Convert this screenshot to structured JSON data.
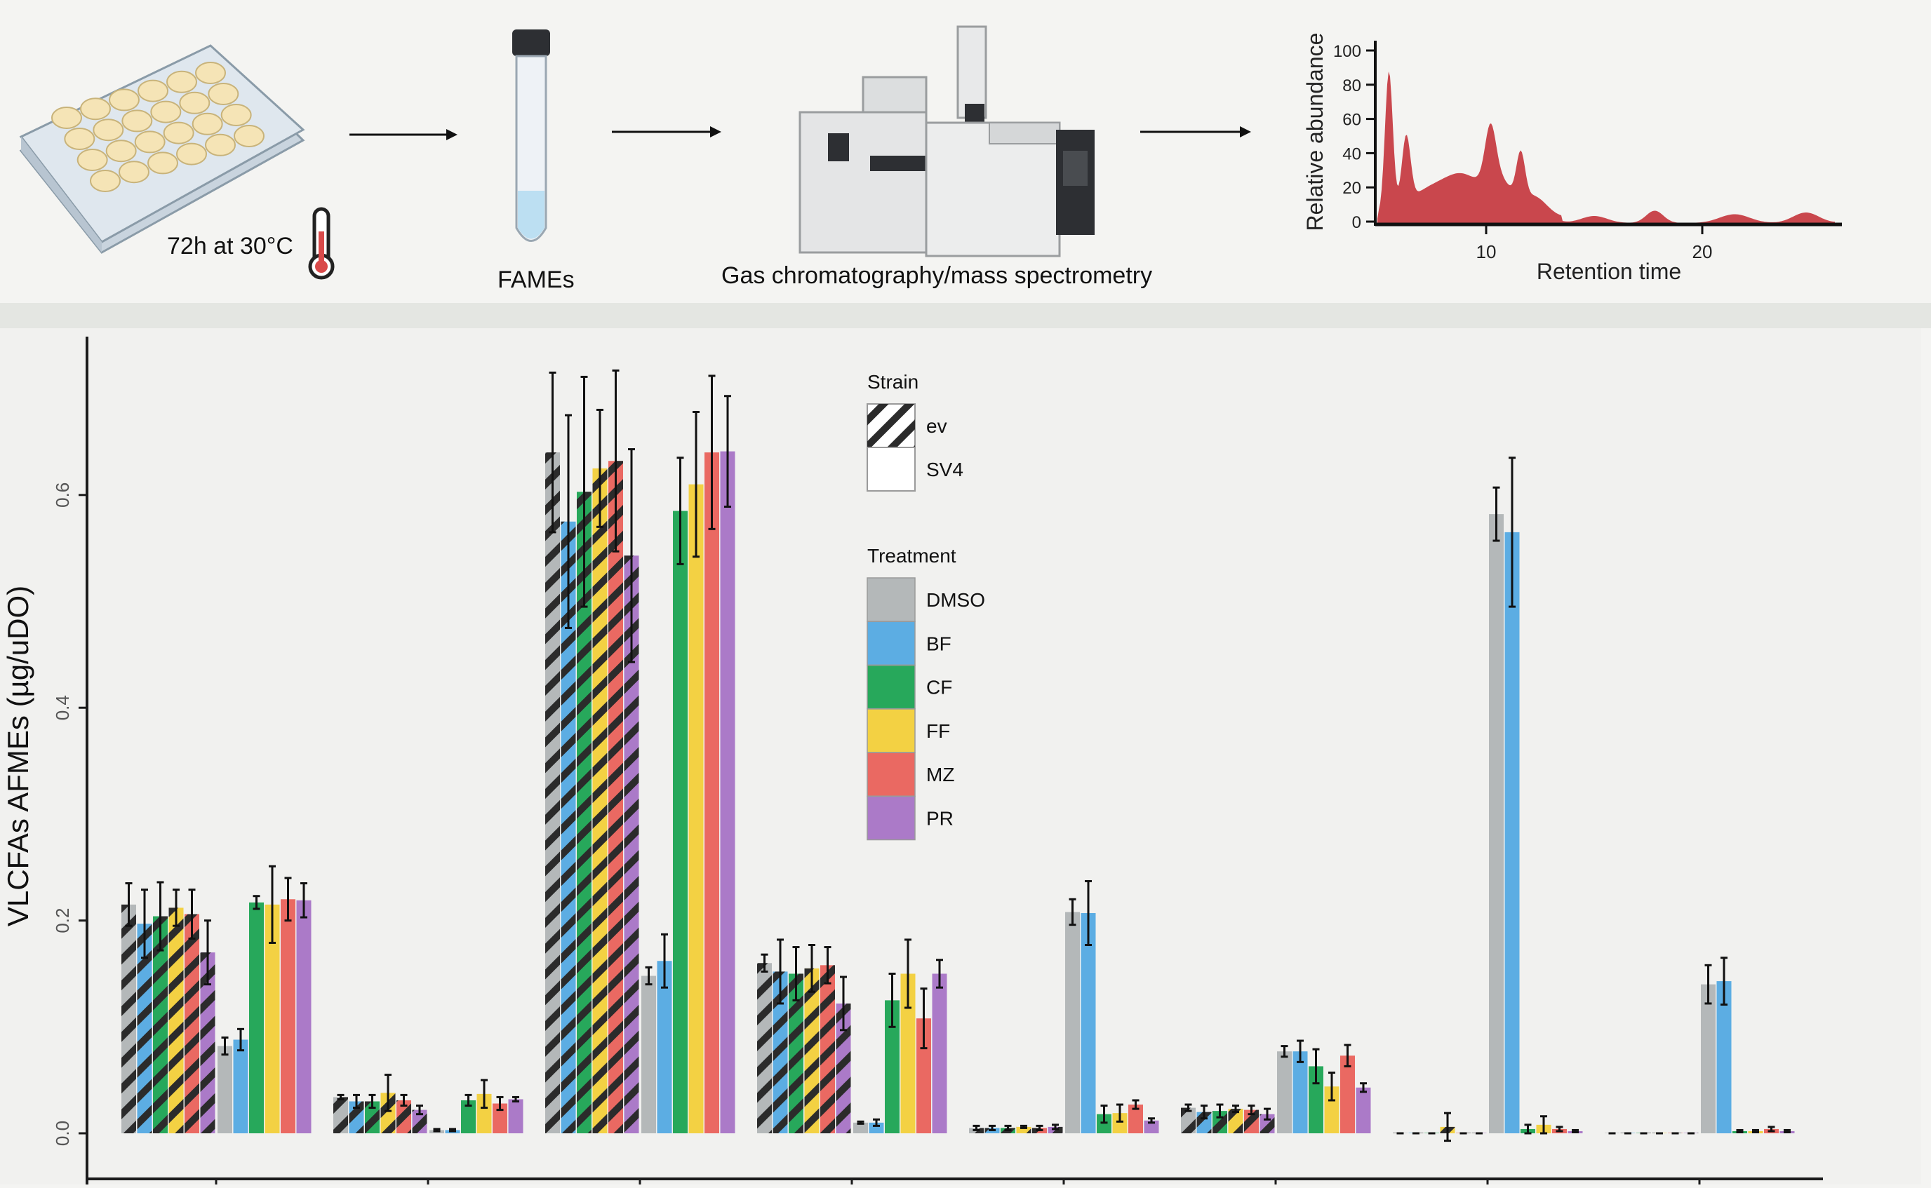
{
  "workflow": {
    "incubation_label": "72h at 30°C",
    "fames_label": "FAMEs",
    "gcms_label": "Gas chromatography/mass spectrometry",
    "chromatogram": {
      "ylabel": "Relative abundance",
      "xlabel": "Retention time",
      "y_ticks": [
        "100",
        "80",
        "60",
        "40",
        "20",
        "0"
      ],
      "x_ticks": [
        "10",
        "20"
      ],
      "color": "#c9474d"
    }
  },
  "chart_data": {
    "type": "bar",
    "title": "",
    "xlabel": "",
    "ylabel": "VLCFAs AFMEs (µg/uDO)",
    "ylim": [
      0,
      0.73
    ],
    "y_ticks": [
      "0.0",
      "0.2",
      "0.4",
      "0.6"
    ],
    "grid": false,
    "legend_placement": "top-center",
    "legend_strain": {
      "title": "Strain",
      "items": [
        {
          "name": "ev",
          "pattern": "hatched"
        },
        {
          "name": "SV4",
          "pattern": "solid"
        }
      ]
    },
    "legend_treatment": {
      "title": "Treatment",
      "items": [
        {
          "name": "DMSO",
          "color": "#b4b8b9"
        },
        {
          "name": "BF",
          "color": "#5cade3"
        },
        {
          "name": "CF",
          "color": "#27a85b"
        },
        {
          "name": "FF",
          "color": "#f3d143"
        },
        {
          "name": "MZ",
          "color": "#ea6962"
        },
        {
          "name": "PR",
          "color": "#ab7ac8"
        }
      ]
    },
    "groups": [
      {
        "ev": {
          "values": [
            0.215,
            0.197,
            0.204,
            0.212,
            0.206,
            0.17
          ],
          "errors": [
            0.02,
            0.032,
            0.032,
            0.017,
            0.023,
            0.03
          ]
        },
        "SV4": {
          "values": [
            0.082,
            0.088,
            0.217,
            0.215,
            0.22,
            0.219
          ],
          "errors": [
            0.008,
            0.01,
            0.006,
            0.036,
            0.02,
            0.016
          ]
        }
      },
      {
        "ev": {
          "values": [
            0.034,
            0.03,
            0.03,
            0.038,
            0.031,
            0.022
          ],
          "errors": [
            0.002,
            0.006,
            0.006,
            0.017,
            0.005,
            0.004
          ]
        },
        "SV4": {
          "values": [
            0.003,
            0.003,
            0.031,
            0.037,
            0.028,
            0.032
          ],
          "errors": [
            0.001,
            0.001,
            0.005,
            0.013,
            0.006,
            0.002
          ]
        }
      },
      {
        "ev": {
          "values": [
            0.64,
            0.575,
            0.603,
            0.625,
            0.632,
            0.543
          ],
          "errors": [
            0.075,
            0.1,
            0.108,
            0.055,
            0.085,
            0.1
          ]
        },
        "SV4": {
          "values": [
            0.148,
            0.162,
            0.585,
            0.61,
            0.64,
            0.641
          ],
          "errors": [
            0.008,
            0.025,
            0.05,
            0.068,
            0.072,
            0.052
          ]
        }
      },
      {
        "ev": {
          "values": [
            0.16,
            0.152,
            0.15,
            0.155,
            0.158,
            0.122
          ],
          "errors": [
            0.008,
            0.03,
            0.025,
            0.022,
            0.017,
            0.025
          ]
        },
        "SV4": {
          "values": [
            0.01,
            0.01,
            0.125,
            0.15,
            0.108,
            0.15
          ],
          "errors": [
            0.001,
            0.003,
            0.025,
            0.032,
            0.028,
            0.013
          ]
        }
      },
      {
        "ev": {
          "values": [
            0.005,
            0.005,
            0.005,
            0.006,
            0.005,
            0.006
          ],
          "errors": [
            0.002,
            0.002,
            0.002,
            0.001,
            0.002,
            0.002
          ]
        },
        "SV4": {
          "values": [
            0.208,
            0.207,
            0.018,
            0.019,
            0.027,
            0.012
          ],
          "errors": [
            0.012,
            0.03,
            0.008,
            0.008,
            0.004,
            0.002
          ]
        }
      },
      {
        "ev": {
          "values": [
            0.024,
            0.02,
            0.021,
            0.023,
            0.022,
            0.018
          ],
          "errors": [
            0.003,
            0.006,
            0.006,
            0.003,
            0.004,
            0.005
          ]
        },
        "SV4": {
          "values": [
            0.077,
            0.077,
            0.063,
            0.044,
            0.073,
            0.043
          ],
          "errors": [
            0.005,
            0.01,
            0.016,
            0.013,
            0.01,
            0.004
          ]
        }
      },
      {
        "ev": {
          "values": [
            0.0,
            0.0,
            0.0,
            0.006,
            0.0,
            0.0
          ],
          "errors": [
            0.0,
            0.0,
            0.0,
            0.013,
            0.0,
            0.0
          ]
        },
        "SV4": {
          "values": [
            0.582,
            0.565,
            0.004,
            0.008,
            0.004,
            0.002
          ],
          "errors": [
            0.025,
            0.07,
            0.004,
            0.008,
            0.002,
            0.001
          ]
        }
      },
      {
        "ev": {
          "values": [
            0.0,
            0.0,
            0.0,
            0.0,
            0.0,
            0.0
          ],
          "errors": [
            0.0,
            0.0,
            0.0,
            0.0,
            0.0,
            0.0
          ]
        },
        "SV4": {
          "values": [
            0.14,
            0.143,
            0.002,
            0.002,
            0.004,
            0.002
          ],
          "errors": [
            0.018,
            0.022,
            0.001,
            0.001,
            0.002,
            0.001
          ]
        }
      }
    ]
  }
}
